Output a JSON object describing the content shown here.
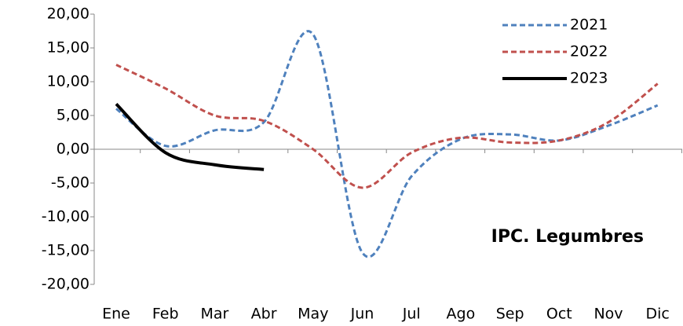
{
  "chart_data": {
    "type": "line",
    "annotation": "IPC. Legumbres",
    "categories": [
      "Ene",
      "Feb",
      "Mar",
      "Abr",
      "May",
      "Jun",
      "Jul",
      "Ago",
      "Sep",
      "Oct",
      "Nov",
      "Dic"
    ],
    "series": [
      {
        "name": "2021",
        "color": "#4f81bd",
        "dashed": true,
        "values": [
          6.0,
          0.5,
          2.8,
          4.0,
          17.0,
          -15.3,
          -4.0,
          1.5,
          2.2,
          1.3,
          3.5,
          6.5
        ]
      },
      {
        "name": "2022",
        "color": "#c0504d",
        "dashed": true,
        "values": [
          12.5,
          9.0,
          5.0,
          4.2,
          0.0,
          -5.7,
          -0.5,
          1.7,
          1.0,
          1.3,
          4.0,
          9.7
        ]
      },
      {
        "name": "2023",
        "color": "#000000",
        "dashed": false,
        "values": [
          6.7,
          -0.5,
          -2.3,
          -3.0,
          null,
          null,
          null,
          null,
          null,
          null,
          null,
          null
        ]
      }
    ],
    "ylim": [
      -20,
      20
    ],
    "yticks": [
      {
        "value": -20,
        "label": "-20,00"
      },
      {
        "value": -15,
        "label": "-15,00"
      },
      {
        "value": -10,
        "label": "-10,00"
      },
      {
        "value": -5,
        "label": "-5,00"
      },
      {
        "value": 0,
        "label": "0,00"
      },
      {
        "value": 5,
        "label": "5,00"
      },
      {
        "value": 10,
        "label": "10,00"
      },
      {
        "value": 15,
        "label": "15,00"
      },
      {
        "value": 20,
        "label": "20,00"
      }
    ],
    "grid": false,
    "legend": "upper right"
  }
}
